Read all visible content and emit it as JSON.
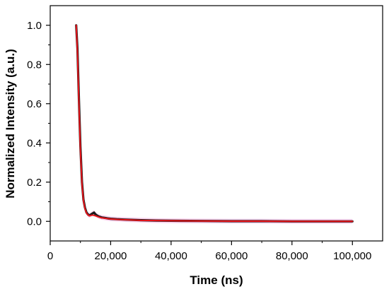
{
  "chart_data": {
    "type": "line",
    "xlabel": "Time (ns)",
    "ylabel": "Normalized Intensity (a.u.)",
    "xlim": [
      0,
      110000
    ],
    "ylim": [
      -0.1,
      1.1
    ],
    "x_ticks": [
      0,
      20000,
      40000,
      60000,
      80000,
      100000
    ],
    "x_tick_labels": [
      "0",
      "20,000",
      "40,000",
      "60,000",
      "80,000",
      "100,000"
    ],
    "y_ticks": [
      0.0,
      0.2,
      0.4,
      0.6,
      0.8,
      1.0
    ],
    "y_tick_labels": [
      "0.0",
      "0.2",
      "0.4",
      "0.6",
      "0.8",
      "1.0"
    ],
    "grid": false,
    "legend": "none",
    "series": [
      {
        "color": "#1a1a1a",
        "x": [
          8600,
          9000,
          9500,
          10000,
          10500,
          11000,
          11500,
          12000,
          12500,
          13000,
          13500,
          14000,
          14500,
          15000,
          15500,
          16000,
          17000,
          18000,
          19000,
          20000,
          22000,
          25000,
          30000,
          35000,
          40000,
          50000,
          60000,
          70000,
          80000,
          90000,
          100000
        ],
        "values": [
          1.0,
          0.88,
          0.62,
          0.38,
          0.2,
          0.11,
          0.07,
          0.045,
          0.035,
          0.03,
          0.035,
          0.04,
          0.045,
          0.035,
          0.03,
          0.025,
          0.02,
          0.018,
          0.015,
          0.013,
          0.011,
          0.009,
          0.006,
          0.004,
          0.003,
          0.002,
          0.001,
          0.001,
          0.0,
          0.0,
          0.0
        ]
      },
      {
        "color": "#e8141a",
        "x": [
          8600,
          9000,
          9500,
          10000,
          10500,
          11000,
          11500,
          12000,
          12500,
          13000,
          13500,
          14000,
          14500,
          15000,
          15500,
          16000,
          17000,
          18000,
          19000,
          20000,
          22000,
          25000,
          30000,
          35000,
          40000,
          50000,
          60000,
          70000,
          80000,
          90000,
          100000
        ],
        "values": [
          1.0,
          0.86,
          0.6,
          0.36,
          0.19,
          0.105,
          0.065,
          0.042,
          0.033,
          0.028,
          0.03,
          0.032,
          0.03,
          0.028,
          0.025,
          0.022,
          0.018,
          0.016,
          0.014,
          0.012,
          0.01,
          0.008,
          0.005,
          0.004,
          0.003,
          0.002,
          0.001,
          0.001,
          0.0,
          0.0,
          0.0
        ]
      }
    ],
    "fit_band_color": "#f07cc8"
  }
}
